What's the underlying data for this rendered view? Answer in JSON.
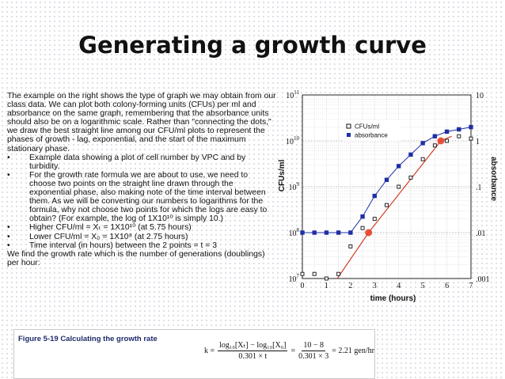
{
  "slide": {
    "title": "Generating a growth curve",
    "intro": "The example on the right shows the type of graph we may obtain from our class data. We can plot both colony-forming units (CFUs) per ml and absorbance on the same graph, remembering that the absorbance units should also be on a logarithmic scale. Rather than \"connecting the dots,\" we draw the best straight line among our CFU/ml plots to represent the phases of growth - lag, exponential, and the start of the maximum stationary phase.",
    "bullets": [
      "Example data showing a plot of cell number by VPC and by turbidity.",
      "For the growth rate formula we are about to use, we need to choose two points on the straight line drawn through the exponential phase, also making note of the time interval between them. As we will be converting our numbers to logarithms for the formula, why not choose two points for which the logs are easy to obtain? (For example, the log of 1X10¹⁰ is simply 10.)",
      "Higher CFU/ml = Xₜ = 1X10¹⁰ (at 5.75 hours)",
      "Lower CFU/ml = X₀ = 1X10⁸ (at 2.75 hours)",
      "Time interval (in hours) between the 2 points = t = 3"
    ],
    "closing": "We find the growth rate which is the number of generations (doublings) per hour:"
  },
  "figure": {
    "caption": "Figure 5-19 Calculating the growth rate",
    "formula_lhs": "k =",
    "formula_num": "log₁₀[Xₜ] − log₁₀[X₀]",
    "formula_den": "0.301 × t",
    "formula_eq1": "=",
    "formula_num2": "10 − 8",
    "formula_den2": "0.301 × 3",
    "formula_result": "= 2.21 gen/hr"
  },
  "chart_data": {
    "type": "line",
    "xlabel": "time (hours)",
    "ylabel": "CFUs/ml",
    "y2label": "absorbance",
    "xlim": [
      0,
      7
    ],
    "x_ticks": [
      "0",
      "1",
      "2",
      "3",
      "4",
      "5",
      "6",
      "7"
    ],
    "y_left_ticks": [
      {
        "base": "10",
        "exp": "7"
      },
      {
        "base": "10",
        "exp": "8"
      },
      {
        "base": "10",
        "exp": "9"
      },
      {
        "base": "10",
        "exp": "10"
      },
      {
        "base": "10",
        "exp": "11"
      }
    ],
    "y_right_ticks": [
      ".001",
      ".01",
      ".1",
      "1",
      "10"
    ],
    "y_scale": "log",
    "grid": true,
    "legend_position": "top-right",
    "series": [
      {
        "name": "CFUs/ml",
        "marker": "open-square",
        "color": "#111111",
        "x": [
          0,
          0.5,
          1,
          1.5,
          2,
          2.5,
          3,
          3.5,
          4,
          4.5,
          5,
          5.5,
          6,
          6.5,
          7
        ],
        "log10_y": [
          7.1,
          7.1,
          7.0,
          7.1,
          7.7,
          8.1,
          8.3,
          8.6,
          9.0,
          9.2,
          9.6,
          9.9,
          10.0,
          10.1,
          10.05
        ]
      },
      {
        "name": "absorbance",
        "marker": "filled-square",
        "color": "#1f2fa5",
        "x": [
          0,
          0.5,
          1,
          1.5,
          2,
          2.5,
          3,
          3.5,
          4,
          4.5,
          5,
          5.5,
          6,
          6.5,
          7
        ],
        "log10_y": [
          8.0,
          8.0,
          8.0,
          8.0,
          8.0,
          8.35,
          8.8,
          9.15,
          9.45,
          9.7,
          9.95,
          10.1,
          10.2,
          10.25,
          10.3
        ]
      }
    ],
    "best_fit_line": {
      "color": "#d2402a",
      "x": [
        1.45,
        2.75,
        5.75,
        6.2
      ],
      "log10_y": [
        7.0,
        8.0,
        10.0,
        10.1
      ]
    },
    "highlight_points": [
      {
        "x": 2.75,
        "log10_y": 8.0,
        "color": "#e8402a"
      },
      {
        "x": 5.75,
        "log10_y": 10.0,
        "color": "#e8402a"
      }
    ]
  }
}
